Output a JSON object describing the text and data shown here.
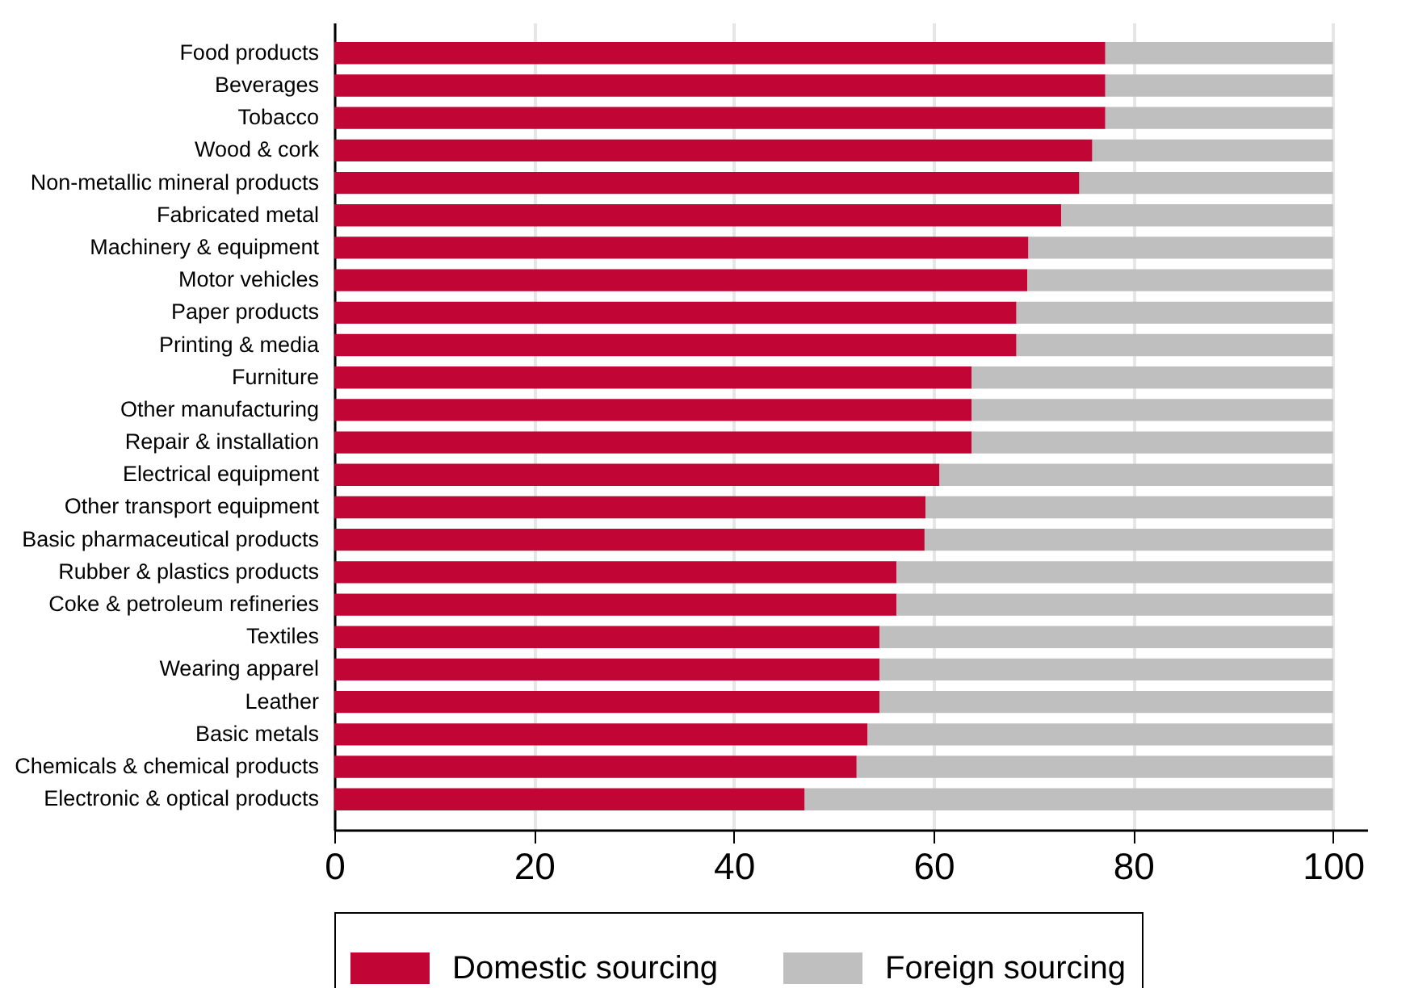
{
  "chart_data": {
    "type": "bar",
    "orientation": "horizontal",
    "stacked": true,
    "categories": [
      "Food products",
      "Beverages",
      "Tobacco",
      "Wood & cork",
      "Non-metallic mineral products",
      "Fabricated metal",
      "Machinery & equipment",
      "Motor vehicles",
      "Paper products",
      "Printing & media",
      "Furniture",
      "Other manufacturing",
      "Repair & installation",
      "Electrical equipment",
      "Other transport equipment",
      "Basic pharmaceutical products",
      "Rubber & plastics products",
      "Coke & petroleum refineries",
      "Textiles",
      "Wearing apparel",
      "Leather",
      "Basic metals",
      "Chemicals & chemical products",
      "Electronic & optical products"
    ],
    "series": [
      {
        "name": "Domestic sourcing",
        "color": "#c10534",
        "values": [
          77.2,
          77.2,
          77.2,
          75.9,
          74.6,
          72.8,
          69.5,
          69.4,
          68.3,
          68.3,
          63.8,
          63.8,
          63.8,
          60.6,
          59.2,
          59.1,
          56.3,
          56.3,
          54.6,
          54.6,
          54.6,
          53.4,
          52.3,
          47.1
        ]
      },
      {
        "name": "Foreign sourcing",
        "color": "#bfbfbf",
        "values": [
          22.8,
          22.8,
          22.8,
          24.1,
          25.4,
          27.2,
          30.5,
          30.6,
          31.7,
          31.7,
          36.2,
          36.2,
          36.2,
          39.4,
          40.8,
          40.9,
          43.7,
          43.7,
          45.4,
          45.4,
          45.4,
          46.6,
          47.7,
          52.9
        ]
      }
    ],
    "xlim": [
      0,
      103.5
    ],
    "xticks": [
      0,
      20,
      40,
      60,
      80,
      100
    ],
    "grid": "x",
    "legend": "bottom"
  }
}
